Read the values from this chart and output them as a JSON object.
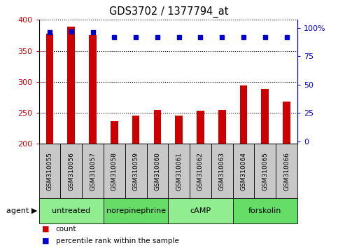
{
  "title": "GDS3702 / 1377794_at",
  "samples": [
    "GSM310055",
    "GSM310056",
    "GSM310057",
    "GSM310058",
    "GSM310059",
    "GSM310060",
    "GSM310061",
    "GSM310062",
    "GSM310063",
    "GSM310064",
    "GSM310065",
    "GSM310066"
  ],
  "counts": [
    378,
    389,
    376,
    236,
    245,
    255,
    245,
    253,
    255,
    294,
    289,
    268
  ],
  "percentile_ranks": [
    96,
    97,
    96,
    92,
    92,
    92,
    92,
    92,
    92,
    92,
    92,
    92
  ],
  "y_min": 200,
  "y_max": 400,
  "y_ticks": [
    200,
    250,
    300,
    350,
    400
  ],
  "y2_ticks": [
    0,
    25,
    50,
    75,
    100
  ],
  "agent_groups": [
    {
      "label": "untreated",
      "start": 0,
      "end": 3
    },
    {
      "label": "norepinephrine",
      "start": 3,
      "end": 6
    },
    {
      "label": "cAMP",
      "start": 6,
      "end": 9
    },
    {
      "label": "forskolin",
      "start": 9,
      "end": 12
    }
  ],
  "bar_color": "#cc0000",
  "dot_color": "#0000cc",
  "grid_color": "#000000",
  "tick_label_color_left": "#cc0000",
  "tick_label_color_right": "#0000cc",
  "sample_box_color": "#c8c8c8",
  "agent_box_color": "#90ee90",
  "agent_box_color_alt": "#66dd66",
  "background_color": "#ffffff",
  "bar_width": 0.35
}
